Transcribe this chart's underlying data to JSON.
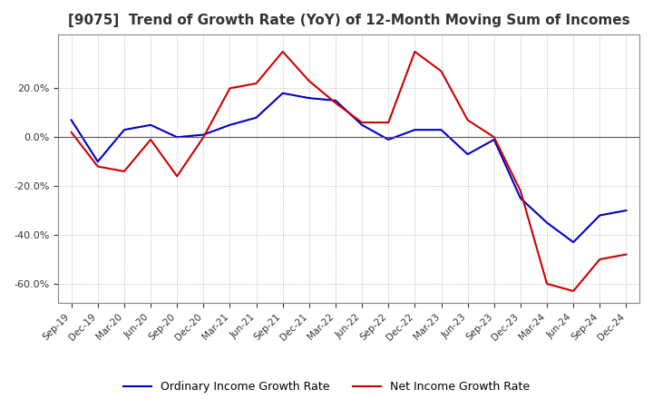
{
  "title": "[9075]  Trend of Growth Rate (YoY) of 12-Month Moving Sum of Incomes",
  "title_fontsize": 11,
  "x_labels": [
    "Sep-19",
    "Dec-19",
    "Mar-20",
    "Jun-20",
    "Sep-20",
    "Dec-20",
    "Mar-21",
    "Jun-21",
    "Sep-21",
    "Dec-21",
    "Mar-22",
    "Jun-22",
    "Sep-22",
    "Dec-22",
    "Mar-23",
    "Jun-23",
    "Sep-23",
    "Dec-23",
    "Mar-24",
    "Jun-24",
    "Sep-24",
    "Dec-24"
  ],
  "ordinary_income": [
    0.07,
    -0.1,
    0.03,
    0.05,
    0.0,
    0.01,
    0.05,
    0.08,
    0.18,
    0.16,
    0.15,
    0.05,
    -0.01,
    0.03,
    0.03,
    -0.07,
    -0.01,
    -0.25,
    -0.35,
    -0.43,
    -0.32,
    -0.3
  ],
  "net_income": [
    0.02,
    -0.12,
    -0.14,
    -0.01,
    -0.16,
    0.0,
    0.2,
    0.22,
    0.35,
    0.23,
    0.14,
    0.06,
    0.06,
    0.35,
    0.27,
    0.07,
    0.0,
    -0.22,
    -0.6,
    -0.63,
    -0.5,
    -0.48
  ],
  "ordinary_color": "#0000cc",
  "net_color": "#cc0000",
  "ylim": [
    -0.68,
    0.42
  ],
  "yticks": [
    0.2,
    0.0,
    -0.2,
    -0.4,
    -0.6
  ],
  "background_color": "#ffffff",
  "grid_color": "#aaaaaa",
  "legend_ordinary": "Ordinary Income Growth Rate",
  "legend_net": "Net Income Growth Rate"
}
